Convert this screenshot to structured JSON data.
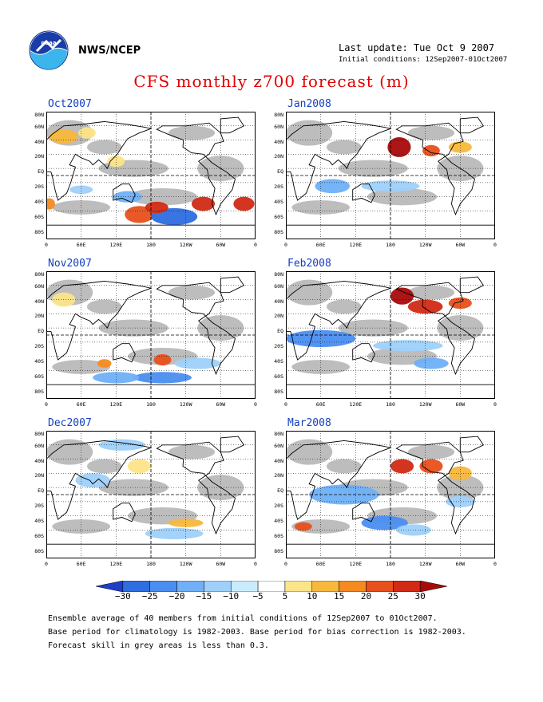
{
  "header": {
    "org": "NWS/NCEP",
    "last_update": "Last update: Tue Oct  9 2007",
    "initial_conditions": "Initial conditions: 12Sep2007-01Oct2007",
    "title": "CFS monthly z700 forecast (m)"
  },
  "axes": {
    "lat_labels": [
      "80N",
      "60N",
      "40N",
      "20N",
      "EQ",
      "20S",
      "40S",
      "60S",
      "80S"
    ],
    "lon_labels": [
      "0",
      "60E",
      "120E",
      "180",
      "120W",
      "60W",
      "0"
    ]
  },
  "panels": [
    {
      "title": "Oct2007"
    },
    {
      "title": "Jan2008"
    },
    {
      "title": "Nov2007"
    },
    {
      "title": "Feb2008"
    },
    {
      "title": "Dec2007"
    },
    {
      "title": "Mar2008"
    }
  ],
  "colorbar": {
    "labels": [
      "−30",
      "−25",
      "−20",
      "−15",
      "−10",
      "−5",
      "5",
      "10",
      "15",
      "20",
      "25",
      "30"
    ],
    "colors": [
      "#1e3ec8",
      "#2e6ee0",
      "#4a8ef0",
      "#6fb0f8",
      "#9ed0fa",
      "#c8ecfc",
      "#ffffff",
      "#fce488",
      "#f8b83c",
      "#f58a20",
      "#e8501c",
      "#d22a14",
      "#a80a0a"
    ]
  },
  "footer": {
    "line1": "Ensemble average of 40 members from initial conditions of 12Sep2007 to 01Oct2007.",
    "line2": "Base period for climatology is 1982-2003. Base period for bias correction is 1982-2003.",
    "line3": "Forecast skill in grey areas is less than 0.3."
  }
}
